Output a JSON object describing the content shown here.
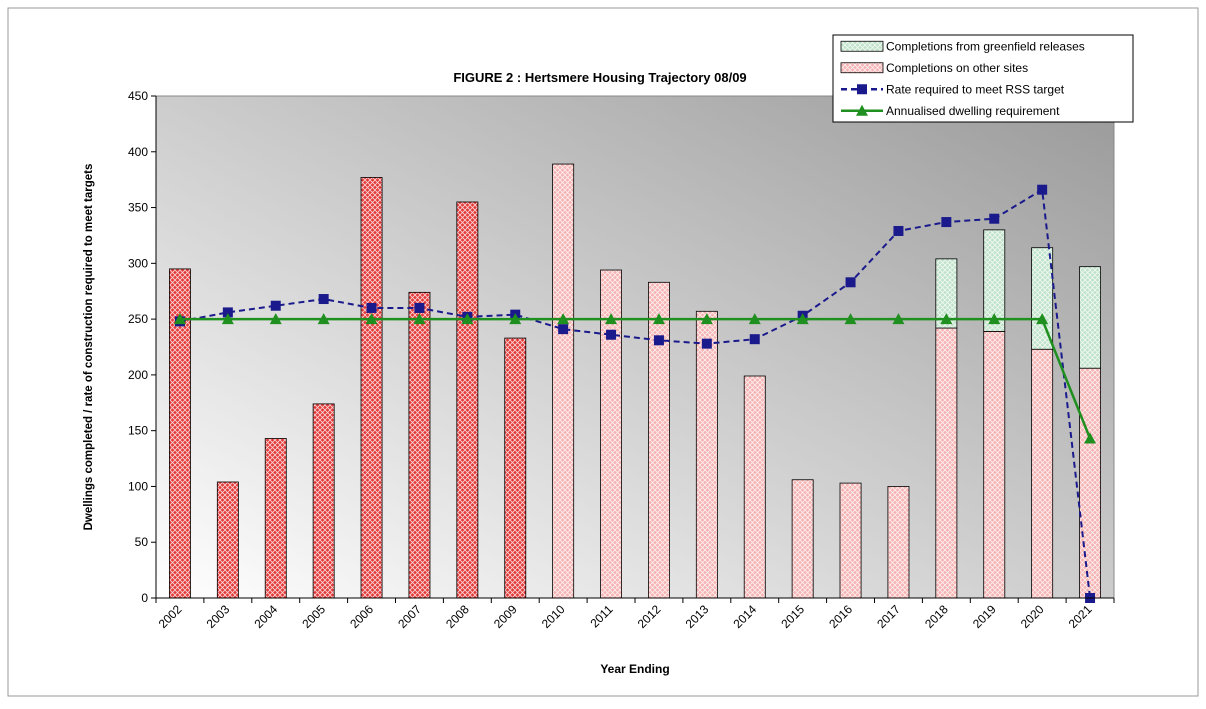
{
  "chart_data": {
    "type": "bar",
    "title": "FIGURE 2 : Hertsmere Housing Trajectory 08/09",
    "x_label": "Year Ending",
    "y_label": "Dwellings completed / rate of construction required to meet targets",
    "categories": [
      "2002",
      "2003",
      "2004",
      "2005",
      "2006",
      "2007",
      "2008",
      "2009",
      "2010",
      "2011",
      "2012",
      "2013",
      "2014",
      "2015",
      "2016",
      "2017",
      "2018",
      "2019",
      "2020",
      "2021"
    ],
    "ylim": [
      0,
      450
    ],
    "yticks": [
      0,
      50,
      100,
      150,
      200,
      250,
      300,
      350,
      400,
      450
    ],
    "legend": "top-right",
    "series": [
      {
        "name": "Completions from greenfield releases",
        "type": "bar",
        "color": "#bfe3c9",
        "values": [
          null,
          null,
          null,
          null,
          null,
          null,
          null,
          null,
          null,
          null,
          null,
          null,
          null,
          null,
          null,
          null,
          62,
          91,
          91,
          91
        ]
      },
      {
        "name": "Completions on other sites",
        "type": "bar",
        "color": "#f6b3b3",
        "bar_colors": [
          "#e33a3a",
          "#e33a3a",
          "#e33a3a",
          "#e33a3a",
          "#e33a3a",
          "#e33a3a",
          "#e33a3a",
          "#e33a3a",
          "#f6b3b3",
          "#f6b3b3",
          "#f6b3b3",
          "#f6b3b3",
          "#f6b3b3",
          "#f6b3b3",
          "#f6b3b3",
          "#f6b3b3",
          "#f6b3b3",
          "#f6b3b3",
          "#f6b3b3",
          "#f6b3b3"
        ],
        "values": [
          295,
          104,
          143,
          174,
          377,
          274,
          355,
          233,
          389,
          294,
          283,
          257,
          199,
          106,
          103,
          100,
          242,
          239,
          223,
          206
        ]
      },
      {
        "name": "Rate required to meet RSS target",
        "type": "line",
        "color": "#1a1a8c",
        "dashed": true,
        "marker": "square",
        "values": [
          248,
          256,
          262,
          268,
          260,
          260,
          252,
          254,
          241,
          236,
          231,
          228,
          232,
          253,
          283,
          329,
          337,
          340,
          366,
          0
        ]
      },
      {
        "name": "Annualised dwelling requirement",
        "type": "line",
        "color": "#1f8f1f",
        "dashed": false,
        "marker": "triangle",
        "values": [
          250,
          250,
          250,
          250,
          250,
          250,
          250,
          250,
          250,
          250,
          250,
          250,
          250,
          250,
          250,
          250,
          250,
          250,
          250,
          143
        ]
      }
    ]
  }
}
